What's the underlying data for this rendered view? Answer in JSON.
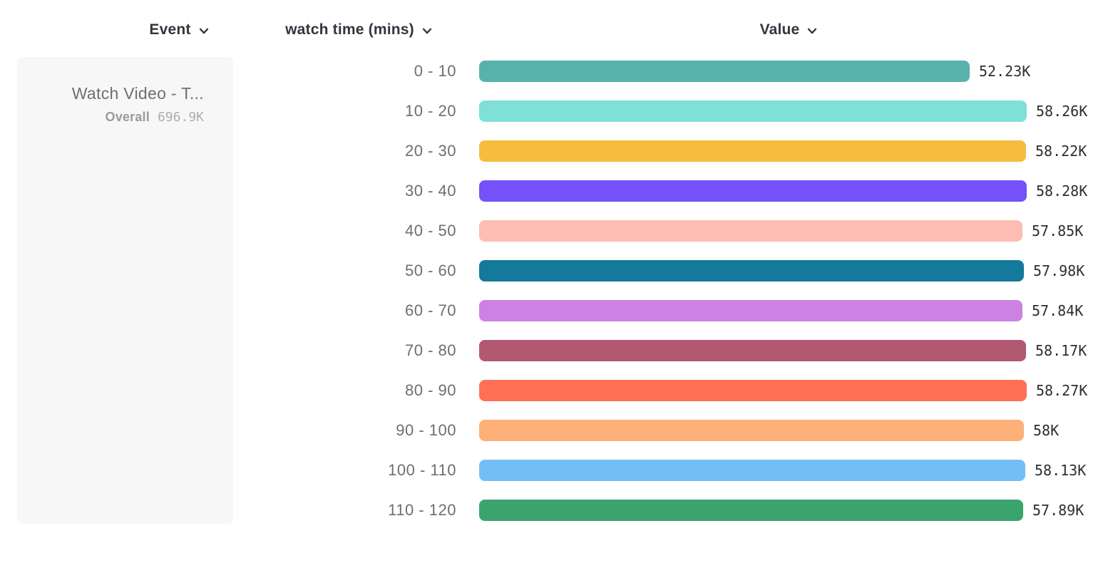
{
  "header": {
    "event_label": "Event",
    "breakdown_label": "watch time (mins)",
    "value_label": "Value"
  },
  "legend": {
    "event_name": "Watch Video - T...",
    "overall_label": "Overall",
    "overall_value": "696.9K"
  },
  "chart_data": {
    "type": "bar",
    "orientation": "horizontal",
    "title": "",
    "xlabel": "Value",
    "ylabel": "watch time (mins)",
    "categories": [
      "0 - 10",
      "10 - 20",
      "20 - 30",
      "30 - 40",
      "40 - 50",
      "50 - 60",
      "60 - 70",
      "70 - 80",
      "80 - 90",
      "90 - 100",
      "100 - 110",
      "110 - 120"
    ],
    "values": [
      52230,
      58260,
      58220,
      58280,
      57850,
      57980,
      57840,
      58170,
      58270,
      58000,
      58130,
      57890
    ],
    "value_labels": [
      "52.23K",
      "58.26K",
      "58.22K",
      "58.28K",
      "57.85K",
      "57.98K",
      "57.84K",
      "58.17K",
      "58.27K",
      "58K",
      "58.13K",
      "57.89K"
    ],
    "colors": [
      "#57B2AC",
      "#7EE0D6",
      "#F7BC3D",
      "#7451F8",
      "#FDBDB2",
      "#15799C",
      "#CB82E2",
      "#B25971",
      "#FF7055",
      "#FDB078",
      "#74BEF8",
      "#3BA46C"
    ],
    "xlim": [
      0,
      58280
    ],
    "grid": false,
    "legend_position": "left"
  }
}
